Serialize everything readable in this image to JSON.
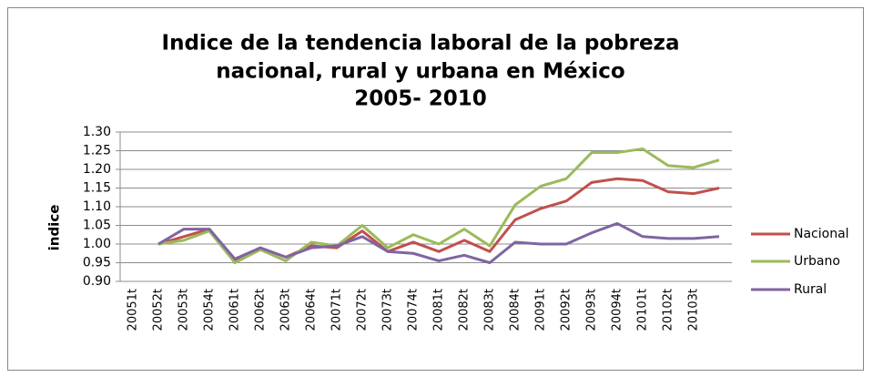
{
  "chart_data": {
    "type": "line",
    "title": [
      "Indice de la tendencia laboral de la pobreza",
      "nacional, rural y urbana en México",
      "2005- 2010"
    ],
    "ylabel": "indice",
    "categories": [
      "20051t",
      "20052t",
      "20053t",
      "20054t",
      "20061t",
      "20062t",
      "20063t",
      "20064t",
      "20071t",
      "20072t",
      "20073t",
      "20074t",
      "20081t",
      "20082t",
      "20083t",
      "20084t",
      "20091t",
      "20092t",
      "20093t",
      "20094t",
      "20101t",
      "20102t",
      "20103t",
      null
    ],
    "series": [
      {
        "name": "Nacional",
        "color": "#c0504d",
        "values": [
          null,
          1.0,
          1.02,
          1.04,
          0.955,
          0.99,
          0.965,
          0.995,
          0.99,
          1.035,
          0.98,
          1.005,
          0.98,
          1.01,
          0.98,
          1.065,
          1.095,
          1.115,
          1.165,
          1.175,
          1.17,
          1.14,
          1.135,
          1.15
        ]
      },
      {
        "name": "Urbano",
        "color": "#9bbb59",
        "values": [
          null,
          1.0,
          1.01,
          1.035,
          0.95,
          0.985,
          0.955,
          1.005,
          0.995,
          1.05,
          0.99,
          1.025,
          1.0,
          1.04,
          0.995,
          1.105,
          1.155,
          1.175,
          1.245,
          1.245,
          1.255,
          1.21,
          1.205,
          1.225
        ]
      },
      {
        "name": "Rural",
        "color": "#8064a2",
        "values": [
          null,
          1.0,
          1.04,
          1.04,
          0.96,
          0.99,
          0.965,
          0.99,
          0.995,
          1.02,
          0.98,
          0.975,
          0.955,
          0.97,
          0.95,
          1.005,
          1.0,
          1.0,
          1.03,
          1.055,
          1.02,
          1.015,
          1.015,
          1.02
        ]
      }
    ],
    "ylim": [
      0.9,
      1.3
    ],
    "yticks": [
      {
        "value": 0.9,
        "label": "0.90"
      },
      {
        "value": 0.95,
        "label": "0.95"
      },
      {
        "value": 1.0,
        "label": "1.00"
      },
      {
        "value": 1.05,
        "label": "1.05"
      },
      {
        "value": 1.1,
        "label": "1.10"
      },
      {
        "value": 1.15,
        "label": "1.15"
      },
      {
        "value": 1.2,
        "label": "1.20"
      },
      {
        "value": 1.25,
        "label": "1.25"
      },
      {
        "value": 1.3,
        "label": "1.30"
      }
    ],
    "grid": true,
    "legend": "right"
  }
}
